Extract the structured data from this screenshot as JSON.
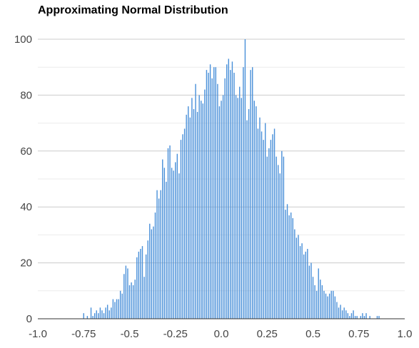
{
  "chart_data": {
    "type": "bar",
    "title": "Approximating Normal Distribution",
    "xlabel": "",
    "ylabel": "",
    "xlim": [
      -1.0,
      1.0
    ],
    "ylim": [
      0,
      100
    ],
    "grid": true,
    "legend": "none",
    "bar_color": "#4a90d9",
    "grid_color": "#cccccc",
    "x_ticks": [
      {
        "value": -1.0,
        "label": "-1.0"
      },
      {
        "value": -0.75,
        "label": "-0.75"
      },
      {
        "value": -0.5,
        "label": "-0.5"
      },
      {
        "value": -0.25,
        "label": "-0.25"
      },
      {
        "value": 0.0,
        "label": "0.0"
      },
      {
        "value": 0.25,
        "label": "0.25"
      },
      {
        "value": 0.5,
        "label": "0.5"
      },
      {
        "value": 0.75,
        "label": "0.75"
      },
      {
        "value": 1.0,
        "label": "1.0"
      }
    ],
    "y_ticks": [
      {
        "value": 0,
        "label": "0"
      },
      {
        "value": 20,
        "label": "20"
      },
      {
        "value": 40,
        "label": "40"
      },
      {
        "value": 60,
        "label": "60"
      },
      {
        "value": 80,
        "label": "80"
      },
      {
        "value": 100,
        "label": "100"
      }
    ],
    "bin_width": 0.01,
    "bin_start": -0.75,
    "values": [
      2,
      0,
      1,
      0,
      4,
      1,
      2,
      3,
      2,
      4,
      3,
      2,
      4,
      5,
      3,
      4,
      7,
      6,
      7,
      7,
      10,
      9,
      16,
      19,
      18,
      12,
      13,
      12,
      14,
      22,
      24,
      25,
      26,
      15,
      23,
      28,
      34,
      32,
      33,
      38,
      46,
      43,
      46,
      57,
      54,
      49,
      61,
      62,
      54,
      53,
      56,
      59,
      52,
      64,
      66,
      68,
      73,
      76,
      72,
      79,
      75,
      84,
      74,
      80,
      78,
      77,
      82,
      89,
      88,
      91,
      86,
      90,
      90,
      84,
      76,
      78,
      80,
      86,
      91,
      93,
      89,
      92,
      88,
      80,
      79,
      83,
      79,
      90,
      100,
      71,
      75,
      89,
      90,
      78,
      76,
      68,
      72,
      67,
      64,
      70,
      58,
      61,
      64,
      66,
      68,
      58,
      55,
      52,
      60,
      58,
      39,
      41,
      37,
      38,
      36,
      32,
      29,
      30,
      26,
      27,
      23,
      24,
      25,
      19,
      20,
      15,
      12,
      10,
      18,
      14,
      12,
      10,
      9,
      8,
      9,
      10,
      10,
      8,
      6,
      4,
      5,
      3,
      4,
      3,
      2,
      1,
      2,
      3,
      1,
      1,
      0,
      1,
      2,
      1,
      2,
      0,
      1,
      0,
      0,
      0,
      0,
      0,
      0,
      0,
      0,
      0,
      0,
      0,
      0,
      0,
      0
    ],
    "extra_bars": [
      {
        "x": 0.85,
        "value": 1
      },
      {
        "x": 0.86,
        "value": 1
      }
    ]
  }
}
